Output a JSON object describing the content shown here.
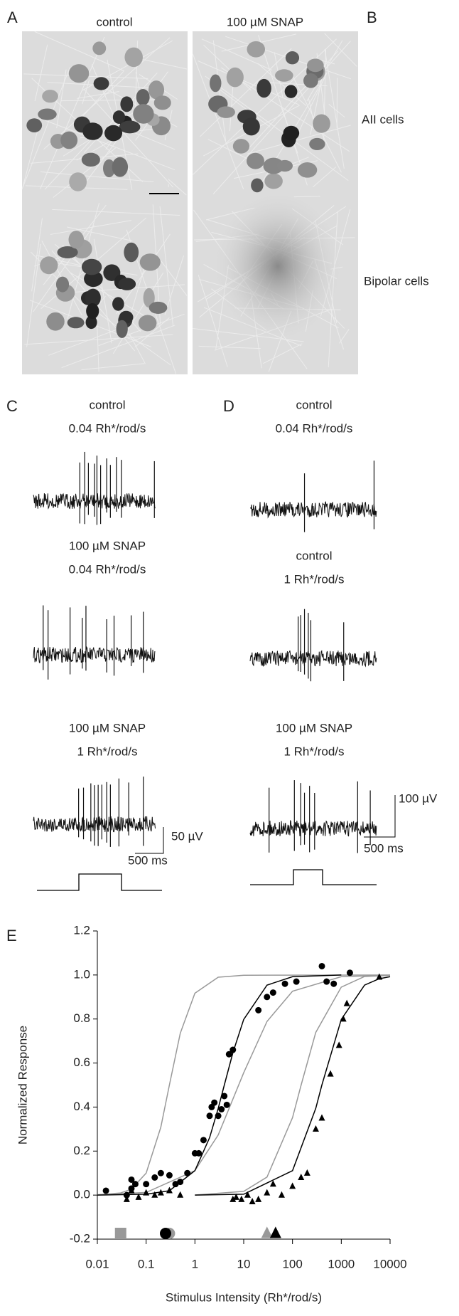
{
  "panel_labels": [
    "A",
    "B",
    "C",
    "D",
    "E"
  ],
  "images": {
    "columns": [
      "control",
      "100 µM SNAP"
    ],
    "rows": [
      "AII cells",
      "Bipolar cells"
    ]
  },
  "recordings": {
    "C": {
      "traces": [
        {
          "title": "control",
          "subtitle": "0.04 Rh*/rod/s"
        },
        {
          "title": "100 µM SNAP",
          "subtitle": "0.04 Rh*/rod/s"
        },
        {
          "title": "100 µM SNAP",
          "subtitle": "1 Rh*/rod/s"
        }
      ],
      "scale_v": "50 µV",
      "scale_t": "500 ms"
    },
    "D": {
      "traces": [
        {
          "title": "control",
          "subtitle": "0.04 Rh*/rod/s"
        },
        {
          "title": "control",
          "subtitle": "1 Rh*/rod/s"
        },
        {
          "title": "100 µM SNAP",
          "subtitle": "1 Rh*/rod/s"
        }
      ],
      "scale_v": "100 µV",
      "scale_t": "500 ms"
    }
  },
  "chart_data": {
    "type": "scatter",
    "xlabel": "Stimulus Intensity (Rh*/rod/s)",
    "ylabel": "Normalized Response",
    "xscale": "log",
    "xlim": [
      0.01,
      10000
    ],
    "xticks": [
      0.01,
      0.1,
      1,
      10,
      100,
      1000,
      10000
    ],
    "ylim": [
      -0.2,
      1.2
    ],
    "yticks": [
      {
        "value": -0.2,
        "label": "-0.2"
      },
      {
        "value": 0,
        "label": "0.0"
      },
      {
        "value": 0.2,
        "label": "0.2"
      },
      {
        "value": 0.4,
        "label": "0.4"
      },
      {
        "value": 0.6,
        "label": "0.6"
      },
      {
        "value": 0.8,
        "label": "0.8"
      },
      {
        "value": 1,
        "label": "1.0"
      },
      {
        "value": 1.2,
        "label": "1.2"
      }
    ],
    "series": [
      {
        "style": "line",
        "color": "#999999",
        "x": [
          0.01,
          0.03,
          0.05,
          0.1,
          0.2,
          0.3,
          0.5,
          1,
          3,
          10,
          10000
        ],
        "values": [
          0.0011,
          0.0099,
          0.027,
          0.1,
          0.308,
          0.5,
          0.735,
          0.917,
          0.99,
          0.999,
          1
        ]
      },
      {
        "style": "line",
        "color": "#999999",
        "x": [
          0.01,
          0.1,
          1,
          3,
          10,
          30,
          100,
          1000,
          10000
        ],
        "values": [
          0.001,
          0.012,
          0.111,
          0.273,
          0.556,
          0.789,
          0.926,
          0.992,
          0.999
        ]
      },
      {
        "style": "line",
        "color": "#999999",
        "x": [
          1,
          10,
          30,
          100,
          150,
          300,
          1000,
          3000,
          10000
        ],
        "values": [
          0.0005,
          0.017,
          0.082,
          0.352,
          0.5,
          0.739,
          0.945,
          0.993,
          0.998
        ]
      },
      {
        "style": "line",
        "color": "#000000",
        "x": [
          0.01,
          0.1,
          0.3,
          1,
          2,
          3,
          4,
          6,
          10,
          30,
          100,
          1000
        ],
        "values": [
          0.0001,
          0.0039,
          0.02,
          0.111,
          0.261,
          0.394,
          0.5,
          0.647,
          0.798,
          0.954,
          0.992,
          1
        ]
      },
      {
        "style": "line",
        "color": "#000000",
        "x": [
          1,
          10,
          100,
          300,
          400,
          1000,
          3000,
          6000,
          10000
        ],
        "values": [
          0.0001,
          0.004,
          0.111,
          0.394,
          0.5,
          0.798,
          0.954,
          0.983,
          0.992
        ]
      },
      {
        "style": "circle",
        "color": "#000000",
        "x": [
          0.015,
          0.04,
          0.05,
          0.05,
          0.06,
          0.1,
          0.15,
          0.2,
          0.3,
          0.4,
          0.5,
          0.7,
          1,
          1.2,
          1.5,
          2,
          2.2,
          2.5,
          3,
          3.5,
          4,
          4.5,
          5,
          6,
          20,
          30,
          40,
          70,
          120,
          400,
          500,
          700,
          1500
        ],
        "values": [
          0.02,
          0,
          0.07,
          0.03,
          0.05,
          0.05,
          0.08,
          0.1,
          0.09,
          0.05,
          0.06,
          0.1,
          0.19,
          0.19,
          0.25,
          0.36,
          0.4,
          0.42,
          0.36,
          0.39,
          0.45,
          0.41,
          0.64,
          0.66,
          0.84,
          0.9,
          0.92,
          0.96,
          0.97,
          1.04,
          0.97,
          0.96,
          1.01
        ]
      },
      {
        "style": "triangle",
        "color": "#000000",
        "x": [
          0.04,
          0.05,
          0.07,
          0.1,
          0.15,
          0.2,
          0.3,
          0.5,
          6,
          7,
          9,
          12,
          15,
          20,
          30,
          40,
          60,
          100,
          150,
          200,
          300,
          400,
          600,
          900,
          1100,
          1300,
          6000
        ],
        "values": [
          -0.02,
          0.02,
          -0.01,
          0.01,
          0,
          0.01,
          0.02,
          0,
          -0.02,
          -0.01,
          -0.02,
          0,
          -0.03,
          -0.02,
          0.01,
          0.05,
          0,
          0.04,
          0.08,
          0.1,
          0.3,
          0.35,
          0.55,
          0.68,
          0.8,
          0.87,
          0.99
        ]
      }
    ],
    "markers": [
      {
        "shape": "square",
        "color": "#999999",
        "x": 0.03,
        "y": -0.2
      },
      {
        "shape": "circle",
        "color": "#999999",
        "x": 0.3,
        "y": -0.2
      },
      {
        "shape": "circle",
        "color": "#000000",
        "x": 0.25,
        "y": -0.2
      },
      {
        "shape": "triangle",
        "color": "#999999",
        "x": 30,
        "y": -0.2
      },
      {
        "shape": "triangle",
        "color": "#000000",
        "x": 45,
        "y": -0.2
      }
    ]
  }
}
